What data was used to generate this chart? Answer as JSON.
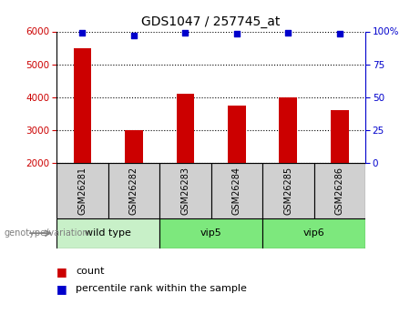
{
  "title": "GDS1047 / 257745_at",
  "samples": [
    "GSM26281",
    "GSM26282",
    "GSM26283",
    "GSM26284",
    "GSM26285",
    "GSM26286"
  ],
  "counts": [
    5500,
    3000,
    4100,
    3750,
    4000,
    3600
  ],
  "percentile_ranks": [
    99,
    97,
    99,
    98,
    99,
    98
  ],
  "ylim_left": [
    2000,
    6000
  ],
  "ylim_right": [
    0,
    100
  ],
  "yticks_left": [
    2000,
    3000,
    4000,
    5000,
    6000
  ],
  "yticks_right": [
    0,
    25,
    50,
    75,
    100
  ],
  "ytick_labels_right": [
    "0",
    "25",
    "50",
    "75",
    "100%"
  ],
  "group_ranges": [
    [
      0,
      1
    ],
    [
      2,
      3
    ],
    [
      4,
      5
    ]
  ],
  "group_labels": [
    "wild type",
    "vip5",
    "vip6"
  ],
  "group_colors": [
    "#c8f0c8",
    "#7de87d",
    "#7de87d"
  ],
  "bar_color": "#cc0000",
  "dot_color": "#0000cc",
  "bar_width": 0.35,
  "left_tick_color": "#cc0000",
  "right_tick_color": "#0000cc",
  "bg_sample_row": "#d0d0d0",
  "group_label": "genotype/variation",
  "legend_count_label": "count",
  "legend_pct_label": "percentile rank within the sample"
}
